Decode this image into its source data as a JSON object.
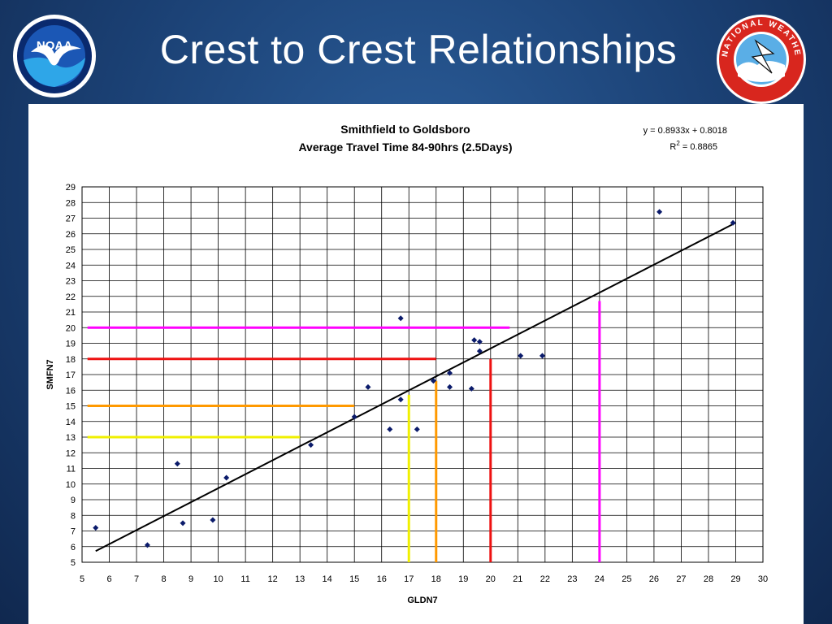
{
  "slide": {
    "title": "Crest to Crest Relationships",
    "left_logo": {
      "text": "NOAA",
      "icon": "noaa-logo"
    },
    "right_logo": {
      "text": "NATIONAL WEATHER SERVICE",
      "icon": "nws-logo"
    }
  },
  "colors": {
    "background": "#1a3f72",
    "points": "#0b1b6b",
    "trendline": "#000000",
    "magenta": "#ff00ff",
    "red": "#ee1111",
    "orange": "#ff9900",
    "yellow": "#f0f000"
  },
  "chart_data": {
    "type": "scatter",
    "title": "Smithfield to Goldsboro",
    "subtitle": "Average Travel Time 84-90hrs (2.5Days)",
    "xlabel": "GLDN7",
    "ylabel": "SMFN7",
    "xlim": [
      5,
      30
    ],
    "ylim": [
      5,
      29
    ],
    "grid": true,
    "x_ticks": [
      "5",
      "6",
      "7",
      "8",
      "9",
      "10",
      "11",
      "12",
      "13",
      "14",
      "15",
      "16",
      "17",
      "18",
      "19",
      "20",
      "21",
      "22",
      "23",
      "24",
      "25",
      "26",
      "27",
      "28",
      "29",
      "30"
    ],
    "y_ticks": [
      "5",
      "6",
      "7",
      "8",
      "9",
      "10",
      "11",
      "12",
      "13",
      "14",
      "15",
      "16",
      "17",
      "18",
      "19",
      "20",
      "21",
      "22",
      "23",
      "24",
      "25",
      "26",
      "27",
      "28",
      "29"
    ],
    "points": [
      {
        "x": 5.5,
        "y": 7.2
      },
      {
        "x": 7.4,
        "y": 6.1
      },
      {
        "x": 8.5,
        "y": 11.3
      },
      {
        "x": 8.7,
        "y": 7.5
      },
      {
        "x": 9.8,
        "y": 7.7
      },
      {
        "x": 10.3,
        "y": 10.4
      },
      {
        "x": 13.4,
        "y": 12.5
      },
      {
        "x": 15.0,
        "y": 14.3
      },
      {
        "x": 15.5,
        "y": 16.2
      },
      {
        "x": 16.3,
        "y": 13.5
      },
      {
        "x": 16.7,
        "y": 15.4
      },
      {
        "x": 16.7,
        "y": 20.6
      },
      {
        "x": 17.3,
        "y": 13.5
      },
      {
        "x": 17.9,
        "y": 16.6
      },
      {
        "x": 18.5,
        "y": 17.1
      },
      {
        "x": 18.5,
        "y": 16.2
      },
      {
        "x": 19.3,
        "y": 16.1
      },
      {
        "x": 19.4,
        "y": 19.2
      },
      {
        "x": 19.6,
        "y": 19.1
      },
      {
        "x": 19.6,
        "y": 18.5
      },
      {
        "x": 21.1,
        "y": 18.2
      },
      {
        "x": 21.9,
        "y": 18.2
      },
      {
        "x": 26.2,
        "y": 27.4
      },
      {
        "x": 28.9,
        "y": 26.7
      }
    ],
    "trendline": {
      "equation": "y = 0.8933x + 0.8018",
      "r2_label": "R",
      "r2_exp": "2",
      "r2_value": " = 0.8865",
      "slope": 0.8933,
      "intercept": 0.8018,
      "x_range": [
        5.5,
        29
      ]
    },
    "guides": [
      {
        "color": "magenta",
        "x": 24,
        "y": 20,
        "x_start": 5.2,
        "x_end": 20.7,
        "y_start": 5,
        "y_end": 21.7
      },
      {
        "color": "red",
        "x": 20,
        "y": 18,
        "x_start": 5.2,
        "x_end": 18,
        "y_start": 5,
        "y_end": 18
      },
      {
        "color": "orange",
        "x": 18,
        "y": 15,
        "x_start": 5.2,
        "x_end": 15,
        "y_start": 5,
        "y_end": 16.6
      },
      {
        "color": "yellow",
        "x": 17,
        "y": 13,
        "x_start": 5.2,
        "x_end": 13,
        "y_start": 5,
        "y_end": 15.7
      }
    ]
  }
}
